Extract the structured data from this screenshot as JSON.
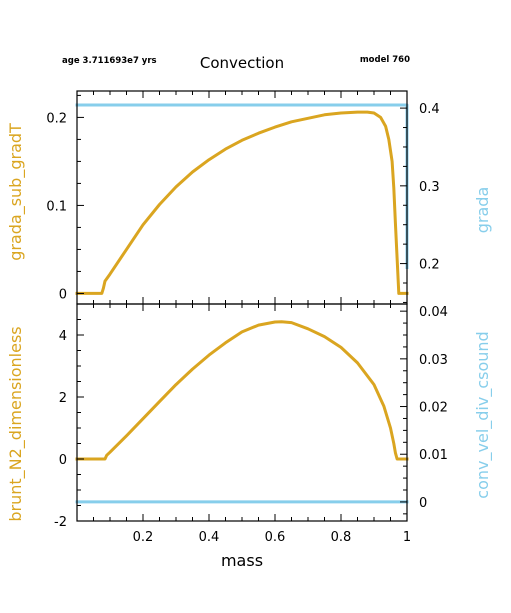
{
  "header": {
    "age_text": "age 3.711693e7 yrs",
    "title": "Convection",
    "model_text": "model 760"
  },
  "colors": {
    "orange": "#DAA520",
    "blue": "#87CEEB",
    "axis": "#000000"
  },
  "chart_data": [
    {
      "type": "line",
      "xlim": [
        0,
        1
      ],
      "xticks": [
        "0.2",
        "0.4",
        "0.6",
        "0.8",
        "1"
      ],
      "xtick_values": [
        0.2,
        0.4,
        0.6,
        0.8,
        1.0
      ],
      "xlabel": "",
      "ylabel_left": "grada_sub_gradT",
      "ylim_left": [
        -0.012,
        0.23
      ],
      "yticks_left": [
        "0",
        "0.1",
        "0.2"
      ],
      "ytick_values_left": [
        0,
        0.1,
        0.2
      ],
      "ylabel_right": "grada",
      "ylim_right": [
        0.148,
        0.422
      ],
      "yticks_right": [
        "0.2",
        "0.3",
        "0.4"
      ],
      "ytick_values_right": [
        0.2,
        0.3,
        0.4
      ],
      "series": [
        {
          "axis": "left",
          "color": "#DAA520",
          "x": [
            0.0,
            0.07,
            0.075,
            0.08,
            0.085,
            0.1,
            0.15,
            0.2,
            0.25,
            0.3,
            0.35,
            0.4,
            0.45,
            0.5,
            0.55,
            0.6,
            0.65,
            0.7,
            0.75,
            0.8,
            0.85,
            0.88,
            0.9,
            0.92,
            0.935,
            0.945,
            0.955,
            0.96,
            0.965,
            0.97,
            0.975,
            0.98,
            0.99,
            1.0
          ],
          "y": [
            0.0,
            0.0,
            0.0,
            0.006,
            0.014,
            0.022,
            0.05,
            0.078,
            0.101,
            0.121,
            0.138,
            0.152,
            0.164,
            0.174,
            0.182,
            0.189,
            0.195,
            0.199,
            0.203,
            0.205,
            0.206,
            0.206,
            0.205,
            0.2,
            0.19,
            0.175,
            0.15,
            0.12,
            0.08,
            0.04,
            0.0,
            0.0,
            0.0,
            0.0
          ]
        },
        {
          "axis": "right",
          "color": "#87CEEB",
          "x": [
            0.0,
            1.0,
            1.0
          ],
          "y": [
            0.404,
            0.404,
            0.195
          ]
        }
      ]
    },
    {
      "type": "line",
      "xlim": [
        0,
        1
      ],
      "xticks": [
        "0.2",
        "0.4",
        "0.6",
        "0.8",
        "1"
      ],
      "xtick_values": [
        0.2,
        0.4,
        0.6,
        0.8,
        1.0
      ],
      "xlabel": "mass",
      "ylabel_left": "brunt_N2_dimensionless",
      "ylim_left": [
        -2,
        5
      ],
      "yticks_left": [
        "-2",
        "0",
        "2",
        "4"
      ],
      "ytick_values_left": [
        -2,
        0,
        2,
        4
      ],
      "ylabel_right": "conv_vel_div_csound",
      "ylim_right": [
        -0.004,
        0.0415
      ],
      "yticks_right": [
        "0",
        "0.01",
        "0.02",
        "0.03",
        "0.04"
      ],
      "ytick_values_right": [
        0,
        0.01,
        0.02,
        0.03,
        0.04
      ],
      "series": [
        {
          "axis": "left",
          "color": "#DAA520",
          "x": [
            0.0,
            0.085,
            0.09,
            0.1,
            0.15,
            0.2,
            0.25,
            0.3,
            0.35,
            0.4,
            0.45,
            0.5,
            0.55,
            0.6,
            0.62,
            0.65,
            0.7,
            0.75,
            0.8,
            0.85,
            0.9,
            0.93,
            0.95,
            0.96,
            0.965,
            0.97,
            0.98,
            1.0
          ],
          "y": [
            0.0,
            0.0,
            0.12,
            0.22,
            0.75,
            1.3,
            1.85,
            2.4,
            2.9,
            3.35,
            3.75,
            4.1,
            4.32,
            4.42,
            4.43,
            4.4,
            4.2,
            3.95,
            3.6,
            3.1,
            2.4,
            1.7,
            1.0,
            0.5,
            0.2,
            0.0,
            0.0,
            0.0
          ]
        },
        {
          "axis": "right",
          "color": "#87CEEB",
          "x": [
            0.0,
            1.0
          ],
          "y": [
            0.0,
            0.0
          ]
        }
      ]
    }
  ]
}
